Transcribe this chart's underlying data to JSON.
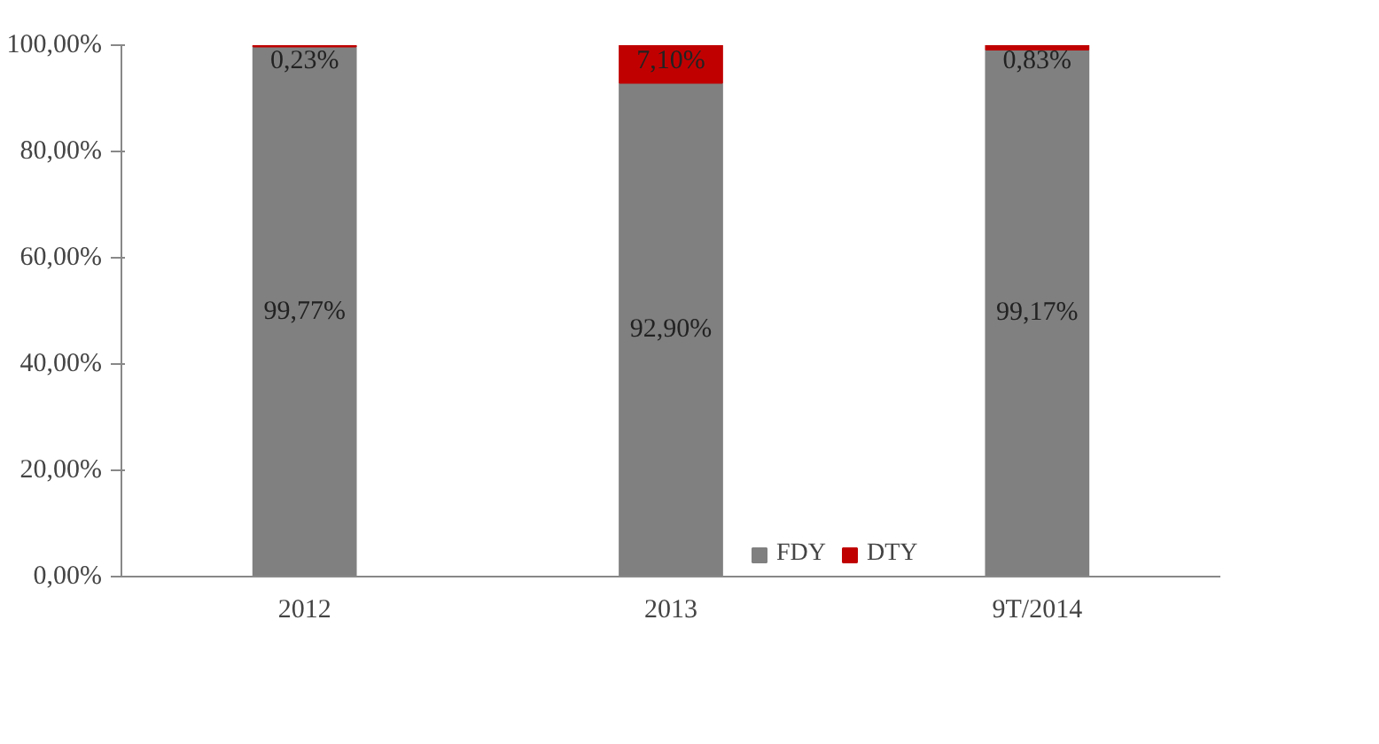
{
  "chart_data": {
    "type": "bar",
    "stacked": true,
    "categories": [
      "2012",
      "2013",
      "9T/2014"
    ],
    "series": [
      {
        "name": "FDY",
        "color": "#808080",
        "values": [
          99.77,
          92.9,
          99.17
        ],
        "value_labels": [
          "99,77%",
          "92,90%",
          "99,17%"
        ]
      },
      {
        "name": "DTY",
        "color": "#c00000",
        "values": [
          0.23,
          7.1,
          0.83
        ],
        "value_labels": [
          "0,23%",
          "7,10%",
          "0,83%"
        ]
      }
    ],
    "ylim": [
      0,
      100
    ],
    "yticks": [
      {
        "value": 0,
        "label": "0,00%"
      },
      {
        "value": 20,
        "label": "20,00%"
      },
      {
        "value": 40,
        "label": "40,00%"
      },
      {
        "value": 60,
        "label": "60,00%"
      },
      {
        "value": 80,
        "label": "80,00%"
      },
      {
        "value": 100,
        "label": "100,00%"
      }
    ],
    "grid": false,
    "legend": "bottom"
  }
}
